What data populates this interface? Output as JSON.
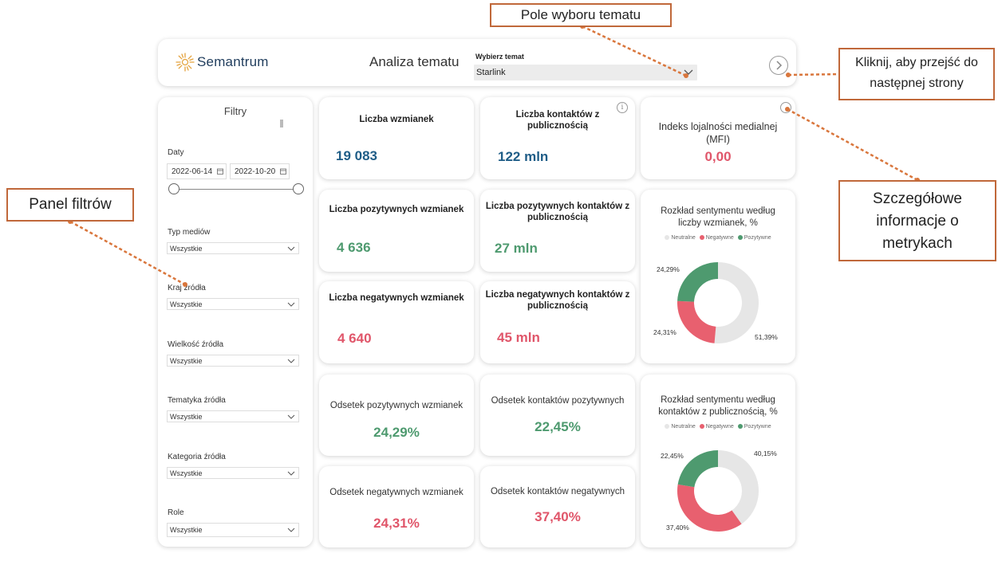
{
  "header": {
    "logo_text": "Semantrum",
    "title": "Analiza tematu",
    "topic_label": "Wybierz temat",
    "topic_value": "Starlink"
  },
  "filters": {
    "title": "Filtry",
    "dates_label": "Daty",
    "date_from": "2022-06-14",
    "date_to": "2022-10-20",
    "dropdowns": [
      {
        "label": "Typ mediów",
        "value": "Wszystkie"
      },
      {
        "label": "Kraj źródła",
        "value": "Wszystkie"
      },
      {
        "label": "Wielkość źródła",
        "value": "Wszystkie"
      },
      {
        "label": "Tematyka źródła",
        "value": "Wszystkie"
      },
      {
        "label": "Kategoria źródła",
        "value": "Wszystkie"
      },
      {
        "label": "Role",
        "value": "Wszystkie"
      }
    ]
  },
  "metrics": {
    "mentions": {
      "label": "Liczba wzmianek",
      "value": "19 083"
    },
    "contacts": {
      "label": "Liczba kontaktów z publicznością",
      "value": "122 mln"
    },
    "mfi": {
      "label": "Indeks lojalności medialnej (MFI)",
      "value": "0,00"
    },
    "pos_mentions": {
      "label": "Liczba pozytywnych wzmianek",
      "value": "4 636"
    },
    "pos_contacts": {
      "label": "Liczba pozytywnych kontaktów z publicznością",
      "value": "27 mln"
    },
    "neg_mentions": {
      "label": "Liczba negatywnych wzmianek",
      "value": "4 640"
    },
    "neg_contacts": {
      "label": "Liczba negatywnych kontaktów z publicznością",
      "value": "45 mln"
    },
    "pos_mentions_pct": {
      "label": "Odsetek pozytywnych wzmianek",
      "value": "24,29%"
    },
    "pos_contacts_pct": {
      "label": "Odsetek kontaktów pozytywnych",
      "value": "22,45%"
    },
    "neg_mentions_pct": {
      "label": "Odsetek negatywnych wzmianek",
      "value": "24,31%"
    },
    "neg_contacts_pct": {
      "label": "Odsetek kontaktów negatywnych",
      "value": "37,40%"
    }
  },
  "chart_data": [
    {
      "type": "pie",
      "title": "Rozkład sentymentu według liczby wzmianek, %",
      "categories": [
        "Neutralne",
        "Negatywne",
        "Pozytywne"
      ],
      "values": [
        51.39,
        24.31,
        24.29
      ],
      "labels": [
        "51,39%",
        "24,31%",
        "24,29%"
      ],
      "colors": [
        "#e6e6e6",
        "#e8606f",
        "#4e9a6f"
      ],
      "legend": "top"
    },
    {
      "type": "pie",
      "title": "Rozkład sentymentu według kontaktów z publicznością, %",
      "categories": [
        "Neutralne",
        "Negatywne",
        "Pozytywne"
      ],
      "values": [
        40.15,
        37.4,
        22.45
      ],
      "labels": [
        "40,15%",
        "37,40%",
        "22,45%"
      ],
      "colors": [
        "#e6e6e6",
        "#e8606f",
        "#4e9a6f"
      ],
      "legend": "top"
    }
  ],
  "annotations": {
    "topic": "Pole wyboru tematu",
    "next": "Kliknij, aby przejść do następnej strony",
    "filters": "Panel filtrów",
    "details": "Szczegółowe informacje o metrykach"
  },
  "colors": {
    "accent": "#c0683a",
    "positive": "#4e9a6f",
    "negative": "#e0566a",
    "primary": "#1f5d87"
  }
}
